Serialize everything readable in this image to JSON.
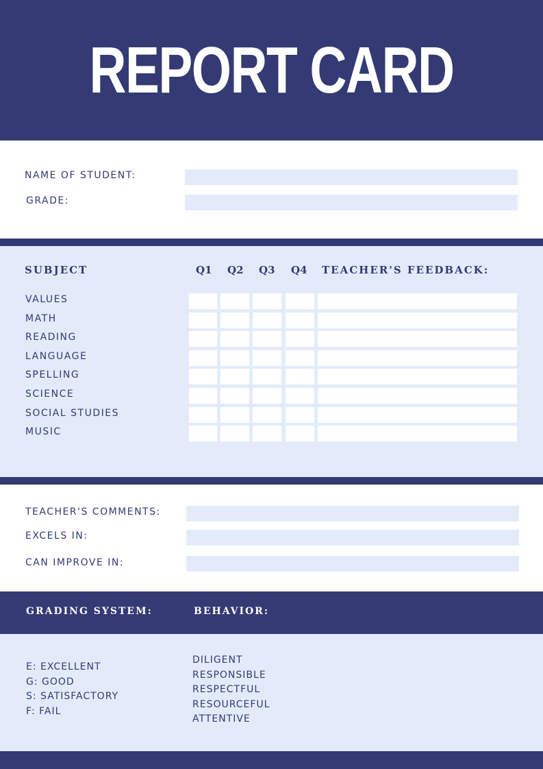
{
  "title": "REPORT CARD",
  "student": {
    "name_label": "NAME OF STUDENT:",
    "grade_label": "GRADE:"
  },
  "table": {
    "subject_header": "SUBJECT",
    "quarters": [
      "Q1",
      "Q2",
      "Q3",
      "Q4"
    ],
    "feedback_header": "TEACHER'S FEEDBACK:",
    "subjects": [
      "VALUES",
      "MATH",
      "READING",
      "LANGUAGE",
      "SPELLING",
      "SCIENCE",
      "SOCIAL STUDIES",
      "MUSIC"
    ]
  },
  "comments": {
    "teacher_comments_label": "TEACHER'S COMMENTS:",
    "excels_label": "EXCELS IN:",
    "improve_label": "CAN IMPROVE IN:"
  },
  "grading": {
    "header": "GRADING SYSTEM:",
    "items": [
      "E: EXCELLENT",
      "G: GOOD",
      "S: SATISFACTORY",
      "F: FAIL"
    ]
  },
  "behavior": {
    "header": "BEHAVIOR:",
    "items": [
      "DILIGENT",
      "RESPONSIBLE",
      "RESPECTFUL",
      "RESOURCEFUL",
      "ATTENTIVE"
    ]
  },
  "colors": {
    "navy": "#343a73",
    "light": "#e3ebfb"
  }
}
